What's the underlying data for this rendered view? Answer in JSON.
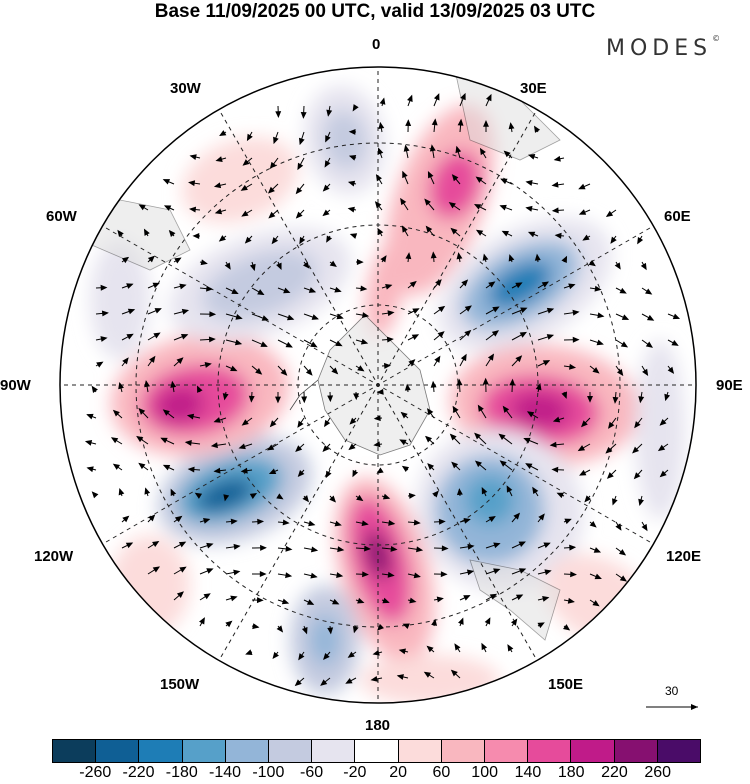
{
  "title": "Base 11/09/2025 00 UTC, valid 13/09/2025 03 UTC",
  "brand": "MODES",
  "brand_mark": "©",
  "longitude_labels": {
    "lon_0": "0",
    "lon_30e": "30E",
    "lon_60e": "60E",
    "lon_90e": "90E",
    "lon_120e": "120E",
    "lon_150e": "150E",
    "lon_180": "180",
    "lon_150w": "150W",
    "lon_120w": "120W",
    "lon_90w": "90W",
    "lon_60w": "60W",
    "lon_30w": "30W"
  },
  "reference_vector": "30",
  "colorbar": {
    "colors": [
      "#0c3d5c",
      "#0f5f95",
      "#1e7db6",
      "#56a0c9",
      "#93b5d8",
      "#c4cbe0",
      "#e6e4ef",
      "#ffffff",
      "#fcdcdb",
      "#f9b7bf",
      "#f68bae",
      "#e64b9b",
      "#c01b89",
      "#861070",
      "#4a0c68"
    ],
    "ticks": [
      "-260",
      "-220",
      "-180",
      "-140",
      "-100",
      "-60",
      "-20",
      "20",
      "60",
      "100",
      "140",
      "180",
      "220",
      "260"
    ]
  }
}
